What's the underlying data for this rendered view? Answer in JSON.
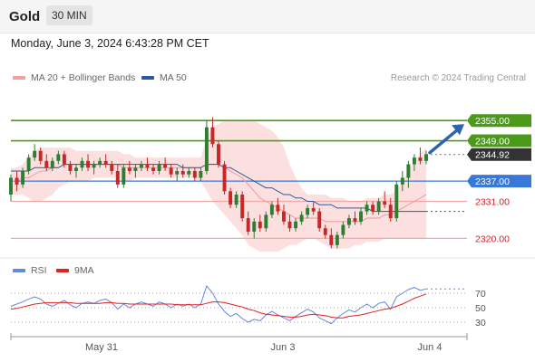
{
  "header": {
    "title": "Gold",
    "timeframe": "30 MIN",
    "timestamp": "Monday, June 3, 2024 6:43:28 PM CET",
    "credit": "Research © 2024 Trading Central"
  },
  "legend": {
    "main": [
      {
        "label": "MA 20 + Bollinger Bands",
        "color": "#f4a0a0"
      },
      {
        "label": "MA 50",
        "color": "#2a5a9a"
      }
    ],
    "rsi": [
      {
        "label": "RSI",
        "color": "#6688dd"
      },
      {
        "label": "9MA",
        "color": "#dd2222"
      }
    ]
  },
  "chart_data": {
    "type": "candlestick",
    "x_tick_labels": [
      "May 31",
      "Jun 3",
      "Jun 4"
    ],
    "y_range": [
      2315,
      2365
    ],
    "levels": [
      {
        "value": 2355.0,
        "label": "2355.00",
        "style": "resistance",
        "color": "#4c9a1a"
      },
      {
        "value": 2349.0,
        "label": "2349.00",
        "style": "resistance",
        "color": "#4c9a1a"
      },
      {
        "value": 2344.92,
        "label": "2344.92",
        "style": "last-price",
        "color": "#333333"
      },
      {
        "value": 2337.0,
        "label": "2337.00",
        "style": "pivot",
        "color": "#3a78d8"
      },
      {
        "value": 2331.0,
        "label": "2331.00",
        "style": "support",
        "color": "#cc2222"
      },
      {
        "value": 2320.0,
        "label": "2320.00",
        "style": "support",
        "color": "#cc2222"
      }
    ],
    "last_price": 2344.92,
    "forecast": {
      "direction": "up",
      "target": 2355.0
    },
    "candles": [
      [
        2333,
        2339,
        2331,
        2338
      ],
      [
        2338,
        2340,
        2334,
        2336
      ],
      [
        2336,
        2341,
        2335,
        2340
      ],
      [
        2340,
        2345,
        2339,
        2344
      ],
      [
        2344,
        2348,
        2343,
        2346
      ],
      [
        2346,
        2347,
        2342,
        2343
      ],
      [
        2343,
        2345,
        2340,
        2341
      ],
      [
        2341,
        2344,
        2340,
        2343
      ],
      [
        2343,
        2346,
        2342,
        2345
      ],
      [
        2345,
        2346,
        2341,
        2342
      ],
      [
        2342,
        2343,
        2339,
        2340
      ],
      [
        2340,
        2342,
        2338,
        2341
      ],
      [
        2341,
        2344,
        2340,
        2343
      ],
      [
        2343,
        2345,
        2340,
        2341
      ],
      [
        2341,
        2343,
        2339,
        2342
      ],
      [
        2342,
        2344,
        2341,
        2343
      ],
      [
        2343,
        2345,
        2341,
        2342
      ],
      [
        2342,
        2343,
        2339,
        2340
      ],
      [
        2340,
        2342,
        2335,
        2336
      ],
      [
        2336,
        2342,
        2335,
        2341
      ],
      [
        2341,
        2343,
        2339,
        2340
      ],
      [
        2340,
        2342,
        2338,
        2341
      ],
      [
        2341,
        2343,
        2340,
        2342
      ],
      [
        2342,
        2344,
        2340,
        2341
      ],
      [
        2341,
        2342,
        2339,
        2340
      ],
      [
        2340,
        2343,
        2339,
        2342
      ],
      [
        2342,
        2344,
        2340,
        2341
      ],
      [
        2341,
        2342,
        2338,
        2339
      ],
      [
        2339,
        2341,
        2337,
        2340
      ],
      [
        2340,
        2342,
        2338,
        2339
      ],
      [
        2339,
        2341,
        2338,
        2340
      ],
      [
        2340,
        2341,
        2337,
        2338
      ],
      [
        2338,
        2341,
        2337,
        2340
      ],
      [
        2340,
        2355,
        2339,
        2353
      ],
      [
        2353,
        2356,
        2347,
        2348
      ],
      [
        2348,
        2349,
        2341,
        2342
      ],
      [
        2342,
        2343,
        2333,
        2334
      ],
      [
        2334,
        2335,
        2329,
        2330
      ],
      [
        2330,
        2334,
        2329,
        2333
      ],
      [
        2333,
        2334,
        2325,
        2326
      ],
      [
        2326,
        2328,
        2321,
        2322
      ],
      [
        2322,
        2326,
        2320,
        2325
      ],
      [
        2325,
        2327,
        2322,
        2323
      ],
      [
        2323,
        2328,
        2322,
        2327
      ],
      [
        2327,
        2331,
        2326,
        2330
      ],
      [
        2330,
        2332,
        2327,
        2328
      ],
      [
        2328,
        2330,
        2324,
        2325
      ],
      [
        2325,
        2327,
        2322,
        2323
      ],
      [
        2323,
        2326,
        2322,
        2325
      ],
      [
        2325,
        2328,
        2324,
        2327
      ],
      [
        2327,
        2330,
        2326,
        2329
      ],
      [
        2329,
        2331,
        2327,
        2328
      ],
      [
        2328,
        2329,
        2322,
        2323
      ],
      [
        2323,
        2324,
        2320,
        2321
      ],
      [
        2321,
        2323,
        2317,
        2318
      ],
      [
        2318,
        2322,
        2317,
        2321
      ],
      [
        2321,
        2325,
        2320,
        2324
      ],
      [
        2324,
        2327,
        2323,
        2326
      ],
      [
        2326,
        2328,
        2324,
        2325
      ],
      [
        2325,
        2329,
        2324,
        2328
      ],
      [
        2328,
        2331,
        2327,
        2330
      ],
      [
        2330,
        2331,
        2327,
        2328
      ],
      [
        2328,
        2332,
        2327,
        2331
      ],
      [
        2331,
        2334,
        2329,
        2330
      ],
      [
        2330,
        2332,
        2325,
        2326
      ],
      [
        2326,
        2337,
        2325,
        2336
      ],
      [
        2336,
        2340,
        2334,
        2338
      ],
      [
        2338,
        2343,
        2335,
        2342
      ],
      [
        2342,
        2345,
        2340,
        2344
      ],
      [
        2344,
        2347,
        2342,
        2343
      ],
      [
        2343,
        2346,
        2342,
        2345
      ]
    ],
    "ma50": [
      2340,
      2340,
      2340,
      2340,
      2341,
      2341,
      2341,
      2341,
      2341,
      2342,
      2342,
      2342,
      2342,
      2342,
      2342,
      2342,
      2342,
      2342,
      2342,
      2342,
      2342,
      2342,
      2342,
      2342,
      2342,
      2342,
      2342,
      2342,
      2342,
      2341,
      2341,
      2341,
      2341,
      2342,
      2342,
      2342,
      2341,
      2341,
      2340,
      2339,
      2338,
      2337,
      2336,
      2335,
      2335,
      2334,
      2333,
      2333,
      2332,
      2332,
      2331,
      2331,
      2330,
      2330,
      2330,
      2329,
      2329,
      2329,
      2329,
      2329,
      2329,
      2328,
      2328,
      2328,
      2328,
      2328,
      2328,
      2328,
      2328,
      2328,
      2328
    ],
    "ma20": [
      2337,
      2337,
      2338,
      2338,
      2339,
      2340,
      2340,
      2341,
      2341,
      2342,
      2342,
      2342,
      2342,
      2342,
      2342,
      2342,
      2342,
      2342,
      2342,
      2341,
      2341,
      2341,
      2341,
      2341,
      2341,
      2341,
      2341,
      2341,
      2341,
      2341,
      2341,
      2341,
      2341,
      2342,
      2342,
      2342,
      2341,
      2340,
      2339,
      2338,
      2336,
      2334,
      2332,
      2331,
      2330,
      2329,
      2328,
      2327,
      2326,
      2326,
      2326,
      2326,
      2326,
      2325,
      2325,
      2325,
      2325,
      2325,
      2325,
      2325,
      2326,
      2326,
      2326,
      2327,
      2327,
      2328,
      2329,
      2330,
      2331,
      2332,
      2333
    ],
    "bb_upper": [
      2341,
      2341,
      2342,
      2344,
      2346,
      2347,
      2347,
      2347,
      2347,
      2347,
      2347,
      2346,
      2346,
      2346,
      2346,
      2346,
      2346,
      2346,
      2346,
      2345,
      2345,
      2344,
      2344,
      2344,
      2344,
      2344,
      2344,
      2344,
      2344,
      2344,
      2344,
      2344,
      2344,
      2350,
      2353,
      2354,
      2355,
      2355,
      2355,
      2355,
      2355,
      2355,
      2354,
      2353,
      2352,
      2350,
      2347,
      2342,
      2338,
      2335,
      2333,
      2333,
      2333,
      2333,
      2332,
      2332,
      2332,
      2331,
      2331,
      2331,
      2332,
      2332,
      2332,
      2333,
      2333,
      2334,
      2337,
      2340,
      2343,
      2345,
      2347
    ],
    "bb_lower": [
      2333,
      2333,
      2333,
      2332,
      2331,
      2331,
      2332,
      2333,
      2335,
      2336,
      2337,
      2337,
      2337,
      2337,
      2338,
      2338,
      2338,
      2338,
      2338,
      2337,
      2337,
      2338,
      2338,
      2338,
      2338,
      2338,
      2338,
      2338,
      2338,
      2338,
      2338,
      2338,
      2337,
      2334,
      2331,
      2329,
      2327,
      2325,
      2323,
      2321,
      2318,
      2317,
      2316,
      2316,
      2316,
      2316,
      2317,
      2318,
      2318,
      2319,
      2320,
      2320,
      2319,
      2318,
      2317,
      2317,
      2317,
      2317,
      2318,
      2318,
      2319,
      2319,
      2319,
      2320,
      2320,
      2320,
      2320,
      2320,
      2320,
      2320,
      2320
    ],
    "rsi": {
      "range": [
        10,
        90
      ],
      "ticks": [
        70,
        50,
        30
      ],
      "rsi": [
        52,
        55,
        58,
        62,
        65,
        62,
        55,
        52,
        56,
        60,
        54,
        50,
        56,
        58,
        56,
        60,
        62,
        57,
        48,
        55,
        50,
        55,
        58,
        55,
        52,
        58,
        55,
        50,
        55,
        52,
        55,
        50,
        55,
        80,
        70,
        55,
        45,
        38,
        42,
        35,
        30,
        34,
        32,
        40,
        45,
        40,
        36,
        32,
        38,
        43,
        48,
        44,
        36,
        32,
        28,
        36,
        42,
        47,
        44,
        50,
        55,
        50,
        56,
        58,
        48,
        65,
        70,
        75,
        78,
        74,
        76
      ],
      "ma9": [
        48,
        49,
        51,
        53,
        55,
        56,
        57,
        57,
        57,
        57,
        57,
        56,
        56,
        56,
        56,
        56,
        57,
        57,
        56,
        56,
        55,
        55,
        55,
        55,
        55,
        55,
        55,
        55,
        54,
        54,
        54,
        54,
        54,
        56,
        58,
        58,
        57,
        55,
        53,
        51,
        48,
        46,
        43,
        41,
        40,
        39,
        38,
        37,
        37,
        38,
        40,
        41,
        40,
        39,
        37,
        36,
        36,
        38,
        39,
        40,
        42,
        44,
        46,
        48,
        49,
        52,
        55,
        59,
        63,
        66,
        69
      ]
    }
  }
}
